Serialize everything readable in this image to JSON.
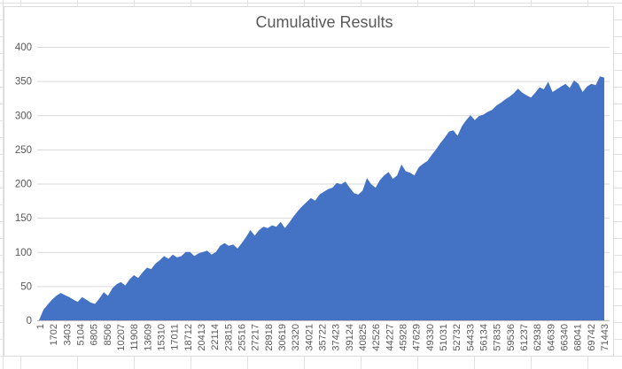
{
  "chart_data": {
    "type": "area",
    "title": "Cumulative Results",
    "xlabel": "",
    "ylabel": "",
    "ylim": [
      0,
      400
    ],
    "y_ticks": [
      0,
      50,
      100,
      150,
      200,
      250,
      300,
      350,
      400
    ],
    "x_tick_labels": [
      "1",
      "1702",
      "3403",
      "5104",
      "6805",
      "8506",
      "10207",
      "11908",
      "13609",
      "15310",
      "17011",
      "18712",
      "20413",
      "22114",
      "23815",
      "25516",
      "27217",
      "28918",
      "30619",
      "32320",
      "34021",
      "35722",
      "37423",
      "39124",
      "40825",
      "42526",
      "44227",
      "45928",
      "47629",
      "49330",
      "51031",
      "52732",
      "54433",
      "56134",
      "57835",
      "59536",
      "61237",
      "62938",
      "64639",
      "66340",
      "68041",
      "69742",
      "71443"
    ],
    "grid": true,
    "legend": "none",
    "series": [
      {
        "name": "Cumulative Results",
        "color": "#4472C4",
        "values": [
          0,
          15,
          23,
          30,
          36,
          40,
          37,
          34,
          30,
          27,
          34,
          30,
          26,
          24,
          32,
          41,
          36,
          47,
          53,
          56,
          51,
          60,
          66,
          62,
          70,
          77,
          75,
          83,
          88,
          94,
          90,
          96,
          92,
          94,
          100,
          100,
          94,
          98,
          100,
          102,
          96,
          100,
          109,
          113,
          109,
          111,
          105,
          113,
          122,
          132,
          124,
          132,
          137,
          135,
          139,
          137,
          144,
          135,
          143,
          152,
          160,
          167,
          173,
          179,
          175,
          184,
          188,
          192,
          194,
          201,
          199,
          203,
          194,
          186,
          184,
          190,
          208,
          199,
          194,
          205,
          212,
          217,
          207,
          212,
          228,
          218,
          216,
          212,
          224,
          229,
          233,
          242,
          250,
          259,
          267,
          276,
          278,
          270,
          284,
          293,
          300,
          293,
          299,
          301,
          305,
          308,
          314,
          318,
          323,
          327,
          332,
          339,
          333,
          329,
          326,
          333,
          341,
          338,
          349,
          334,
          338,
          342,
          346,
          340,
          351,
          346,
          334,
          342,
          346,
          344,
          357,
          355
        ]
      }
    ]
  },
  "colors": {
    "area_fill": "#4472C4",
    "gridline": "#D9D9D9",
    "axis_line": "#BFBFBF",
    "label_text": "#595959",
    "title_text": "#595959",
    "chart_border": "#D9D9D9",
    "chart_background": "#FFFFFF",
    "worksheet_grid": "#E2E2E2"
  }
}
